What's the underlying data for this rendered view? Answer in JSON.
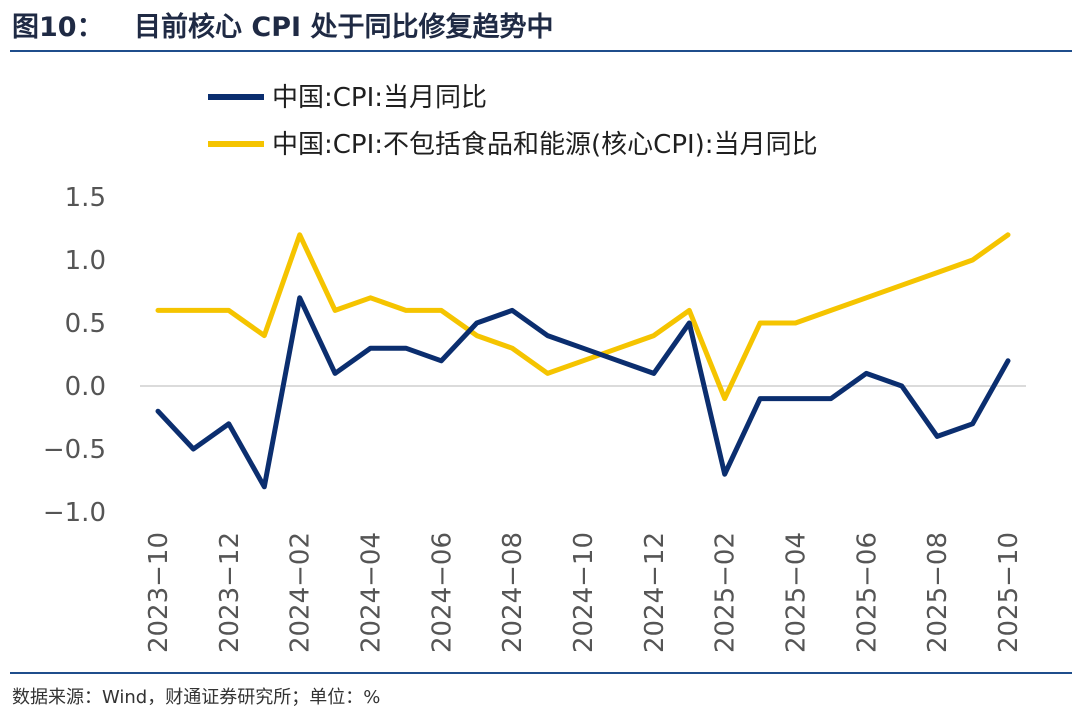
{
  "figure": {
    "label": "图10：",
    "title": "目前核心 CPI 处于同比修复趋势中",
    "source": "数据来源：Wind，财通证券研究所；单位：%"
  },
  "chart_data": {
    "type": "line",
    "x": [
      "2023−10",
      "2023−11",
      "2023−12",
      "2024−01",
      "2024−02",
      "2024−03",
      "2024−04",
      "2024−05",
      "2024−06",
      "2024−07",
      "2024−08",
      "2024−09",
      "2024−10",
      "2024−11",
      "2024−12",
      "2025−01",
      "2025−02",
      "2025−03",
      "2025−04",
      "2025−05",
      "2025−06",
      "2025−07",
      "2025−08",
      "2025−09",
      "2025−10"
    ],
    "xtick_labels": [
      "2023−10",
      "2023−12",
      "2024−02",
      "2024−04",
      "2024−06",
      "2024−08",
      "2024−10",
      "2024−12",
      "2025−02",
      "2025−04",
      "2025−06",
      "2025−08",
      "2025−10"
    ],
    "ylim": [
      -1.0,
      1.5
    ],
    "yticks": [
      -1.0,
      -0.5,
      0.0,
      0.5,
      1.0,
      1.5
    ],
    "ytick_labels": [
      "−1.0",
      "−0.5",
      "0.0",
      "0.5",
      "1.0",
      "1.5"
    ],
    "legend_position": "top-left",
    "series": [
      {
        "name": "中国:CPI:当月同比",
        "color": "#0b2e6f",
        "values": [
          -0.2,
          -0.5,
          -0.3,
          -0.8,
          0.7,
          0.1,
          0.3,
          0.3,
          0.2,
          0.5,
          0.6,
          0.4,
          0.3,
          0.2,
          0.1,
          0.5,
          -0.7,
          -0.1,
          -0.1,
          -0.1,
          0.1,
          0.0,
          -0.4,
          -0.3,
          0.2
        ]
      },
      {
        "name": "中国:CPI:不包括食品和能源(核心CPI):当月同比",
        "color": "#f5c400",
        "values": [
          0.6,
          0.6,
          0.6,
          0.4,
          1.2,
          0.6,
          0.7,
          0.6,
          0.6,
          0.4,
          0.3,
          0.1,
          0.2,
          0.3,
          0.4,
          0.6,
          -0.1,
          0.5,
          0.5,
          0.6,
          0.7,
          0.8,
          0.9,
          1.0,
          1.2
        ]
      }
    ]
  }
}
